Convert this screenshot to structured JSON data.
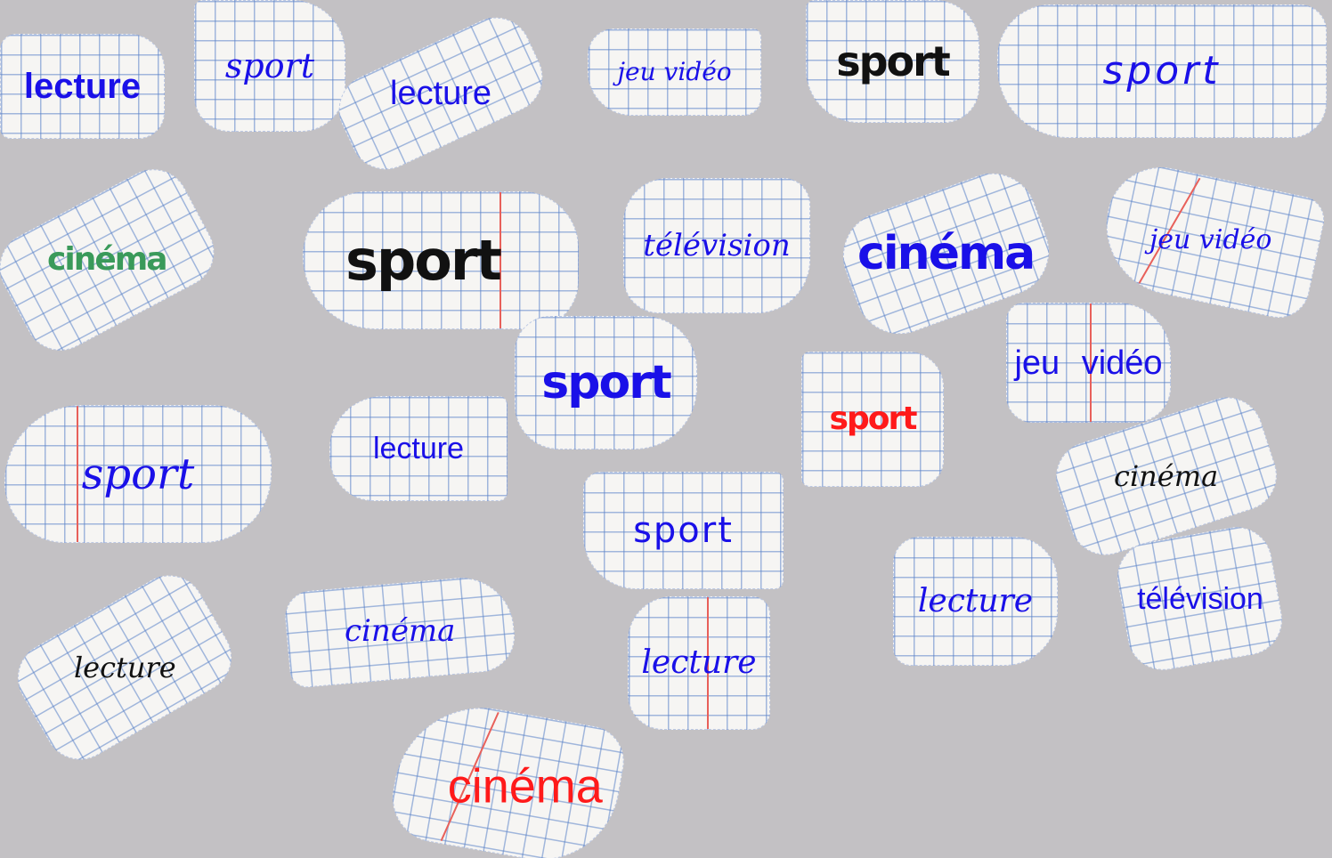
{
  "colors": {
    "background": "#c3c1c4",
    "paper": "#f6f5f3",
    "grid": "#5a82c8",
    "margin_line": "#e8605a",
    "blue": "#1a10e8",
    "black": "#111111",
    "red": "#ff1a1a",
    "green": "#3a9a5a"
  },
  "scraps": [
    {
      "id": "s1",
      "text": "lecture",
      "color": "#1a10e8",
      "style": "bold-print"
    },
    {
      "id": "s2",
      "text": "sport",
      "color": "#1a10e8",
      "style": "script"
    },
    {
      "id": "s3",
      "text": "lecture",
      "color": "#1a10e8",
      "style": "condensed"
    },
    {
      "id": "s4",
      "text": "jeu vidéo",
      "color": "#1a10e8",
      "style": "script"
    },
    {
      "id": "s5",
      "text": "sport",
      "color": "#111111",
      "style": "heavy-condensed"
    },
    {
      "id": "s6",
      "text": "sport",
      "color": "#1a10e8",
      "style": "mono-hand"
    },
    {
      "id": "s7",
      "text": "cinéma",
      "color": "#3a9a5a",
      "style": "heavy-condensed"
    },
    {
      "id": "s8",
      "text": "sport",
      "color": "#111111",
      "style": "heavy-condensed"
    },
    {
      "id": "s9",
      "text": "télévision",
      "color": "#1a10e8",
      "style": "script"
    },
    {
      "id": "s10",
      "text": "cinéma",
      "color": "#1a10e8",
      "style": "heavy-condensed"
    },
    {
      "id": "s11",
      "text": "jeu vidéo",
      "color": "#1a10e8",
      "style": "script"
    },
    {
      "id": "s12",
      "text": "sport",
      "color": "#1a10e8",
      "style": "heavy-condensed"
    },
    {
      "id": "s13",
      "text": "jeu vidéo",
      "color": "#1a10e8",
      "style": "condensed"
    },
    {
      "id": "s14",
      "text": "sport",
      "color": "#111111",
      "style": "script"
    },
    {
      "id": "s15",
      "text": "lecture",
      "color": "#1a10e8",
      "style": "condensed"
    },
    {
      "id": "s16",
      "text": "sport",
      "color": "#ff1a1a",
      "style": "heavy-condensed"
    },
    {
      "id": "s17",
      "text": "sport",
      "color": "#1a10e8",
      "style": "mono-hand"
    },
    {
      "id": "s18",
      "text": "cinéma",
      "color": "#111111",
      "style": "script"
    },
    {
      "id": "s19",
      "text": "lecture",
      "color": "#111111",
      "style": "script"
    },
    {
      "id": "s20",
      "text": "cinéma",
      "color": "#1a10e8",
      "style": "script"
    },
    {
      "id": "s21",
      "text": "lecture",
      "color": "#1a10e8",
      "style": "script"
    },
    {
      "id": "s22",
      "text": "lecture",
      "color": "#1a10e8",
      "style": "script"
    },
    {
      "id": "s23",
      "text": "télévision",
      "color": "#1a10e8",
      "style": "condensed"
    },
    {
      "id": "s24",
      "text": "cinéma",
      "color": "#ff1a1a",
      "style": "condensed"
    }
  ]
}
